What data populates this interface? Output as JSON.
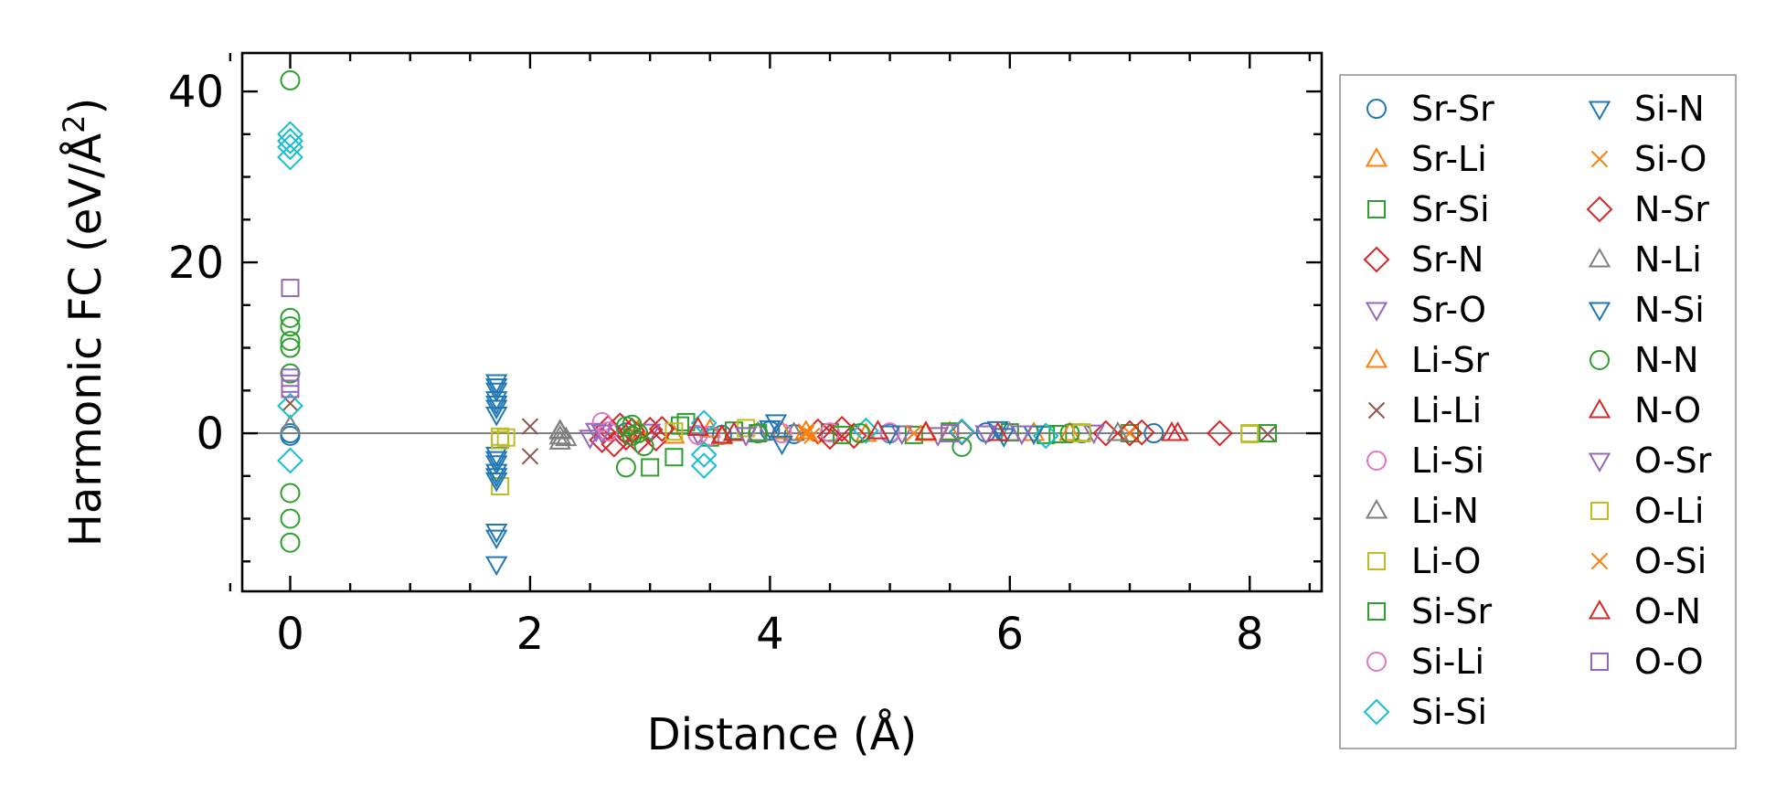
{
  "chart_data": {
    "type": "scatter",
    "xlabel": "Distance (Å)",
    "ylabel_main": "Harmonic FC (eV/Å",
    "ylabel_sup": "2",
    "ylabel_close": ")",
    "xlim": [
      -0.4,
      8.6
    ],
    "ylim": [
      -18.5,
      44.5
    ],
    "xticks": [
      0,
      2,
      4,
      6,
      8
    ],
    "yticks": [
      0,
      20,
      40
    ],
    "legend_position": "outside-right",
    "series": [
      {
        "name": "Sr-Sr",
        "marker": "circle",
        "color": "#1f77b4",
        "points": [
          [
            0,
            0
          ],
          [
            0,
            -0.3
          ],
          [
            2.8,
            0.1
          ],
          [
            3.6,
            -0.2
          ],
          [
            4.0,
            0.3
          ],
          [
            4.2,
            -0.1
          ],
          [
            5.0,
            0.0
          ],
          [
            5.8,
            0.1
          ],
          [
            6.6,
            0.0
          ],
          [
            7.2,
            0.0
          ]
        ]
      },
      {
        "name": "Sr-Li",
        "marker": "triangle-up",
        "color": "#ff7f0e",
        "points": [
          [
            2.9,
            0.2
          ],
          [
            3.2,
            -0.3
          ],
          [
            3.5,
            0.4
          ],
          [
            3.9,
            0.0
          ],
          [
            4.3,
            0.2
          ],
          [
            4.8,
            -0.1
          ],
          [
            5.5,
            0.1
          ],
          [
            6.2,
            0.0
          ]
        ]
      },
      {
        "name": "Sr-Si",
        "marker": "square",
        "color": "#2ca02c",
        "points": [
          [
            3.0,
            -4.0
          ],
          [
            3.2,
            -2.8
          ],
          [
            3.3,
            1.3
          ],
          [
            3.5,
            -0.5
          ],
          [
            3.7,
            0.3
          ],
          [
            4.5,
            0.1
          ],
          [
            5.2,
            -0.2
          ],
          [
            6.0,
            0.1
          ],
          [
            6.4,
            -0.1
          ],
          [
            7.0,
            0.0
          ]
        ]
      },
      {
        "name": "Sr-N",
        "marker": "diamond",
        "color": "#d62728",
        "points": [
          [
            2.6,
            -0.8
          ],
          [
            2.65,
            0.6
          ],
          [
            2.7,
            -1.3
          ],
          [
            2.75,
            0.9
          ],
          [
            2.8,
            -0.5
          ],
          [
            3.0,
            0.4
          ],
          [
            3.05,
            -0.6
          ],
          [
            4.4,
            0.2
          ],
          [
            4.6,
            0.5
          ],
          [
            4.7,
            -0.3
          ],
          [
            5.6,
            0.1
          ],
          [
            6.8,
            0.0
          ],
          [
            7.1,
            0.1
          ]
        ]
      },
      {
        "name": "Sr-O",
        "marker": "triangle-down",
        "color": "#9467bd",
        "points": [
          [
            2.5,
            -0.5
          ],
          [
            2.55,
            0.3
          ],
          [
            3.0,
            0.2
          ],
          [
            3.4,
            -0.1
          ],
          [
            5.1,
            0.0
          ],
          [
            5.4,
            -0.2
          ],
          [
            6.1,
            0.0
          ],
          [
            6.7,
            0.1
          ]
        ]
      },
      {
        "name": "Li-Sr",
        "marker": "triangle-up",
        "color": "#ff7f0e",
        "points": [
          [
            2.9,
            0.3
          ],
          [
            3.6,
            -0.4
          ],
          [
            4.1,
            0.2
          ],
          [
            5.3,
            0.0
          ],
          [
            6.5,
            0.0
          ]
        ]
      },
      {
        "name": "Li-Li",
        "marker": "x",
        "color": "#8c564b",
        "points": [
          [
            0,
            3.5
          ],
          [
            2.0,
            0.8
          ],
          [
            2.0,
            -2.7
          ],
          [
            4.3,
            0.1
          ],
          [
            5.2,
            0.0
          ],
          [
            8.15,
            -0.1
          ]
        ]
      },
      {
        "name": "Li-Si",
        "marker": "circle",
        "color": "#e377c2",
        "points": [
          [
            2.6,
            1.3
          ],
          [
            2.65,
            0.2
          ],
          [
            3.4,
            -0.2
          ],
          [
            4.5,
            0.1
          ]
        ]
      },
      {
        "name": "Li-N",
        "marker": "triangle-up",
        "color": "#7f7f7f",
        "points": [
          [
            0,
            0.8
          ],
          [
            2.25,
            0.3
          ],
          [
            2.25,
            -0.4
          ],
          [
            2.25,
            -1.0
          ],
          [
            2.3,
            -0.6
          ],
          [
            4.2,
            0.0
          ],
          [
            6.0,
            0.0
          ]
        ]
      },
      {
        "name": "Li-O",
        "marker": "square",
        "color": "#bcbd22",
        "points": [
          [
            1.75,
            -0.4
          ],
          [
            1.75,
            -6.2
          ],
          [
            1.8,
            -0.5
          ],
          [
            3.8,
            0.6
          ],
          [
            6.6,
            0.1
          ],
          [
            8.0,
            0.0
          ]
        ]
      },
      {
        "name": "Si-Sr",
        "marker": "square",
        "color": "#2ca02c",
        "points": [
          [
            3.25,
            0.9
          ],
          [
            3.9,
            0.0
          ],
          [
            4.6,
            -0.2
          ],
          [
            5.5,
            0.2
          ],
          [
            6.3,
            -0.2
          ],
          [
            8.15,
            0.0
          ]
        ]
      },
      {
        "name": "Si-Li",
        "marker": "circle",
        "color": "#e377c2",
        "points": [
          [
            3.5,
            -0.3
          ],
          [
            4.1,
            0.0
          ],
          [
            5.0,
            0.1
          ]
        ]
      },
      {
        "name": "Si-Si",
        "marker": "diamond",
        "color": "#17becf",
        "points": [
          [
            0,
            35.0
          ],
          [
            0,
            34.2
          ],
          [
            0,
            33.5
          ],
          [
            0,
            32.3
          ],
          [
            0,
            3.2
          ],
          [
            0,
            -3.2
          ],
          [
            3.45,
            -2.5
          ],
          [
            3.45,
            -3.8
          ],
          [
            3.45,
            1.2
          ],
          [
            4.8,
            0.3
          ],
          [
            5.6,
            0.2
          ],
          [
            6.3,
            -0.3
          ]
        ]
      },
      {
        "name": "Si-N",
        "marker": "triangle-down",
        "color": "#1f77b4",
        "points": [
          [
            1.72,
            6.0
          ],
          [
            1.72,
            5.0
          ],
          [
            1.72,
            4.0
          ],
          [
            1.72,
            3.0
          ],
          [
            1.72,
            2.2
          ],
          [
            1.72,
            -2.5
          ],
          [
            1.72,
            -3.5
          ],
          [
            1.72,
            -4.5
          ],
          [
            1.72,
            -5.5
          ],
          [
            1.72,
            -11.5
          ],
          [
            1.72,
            -12.2
          ],
          [
            1.72,
            -15.3
          ],
          [
            4.05,
            1.3
          ],
          [
            4.1,
            -1.2
          ],
          [
            5.9,
            0.5
          ],
          [
            5.95,
            -0.3
          ]
        ]
      },
      {
        "name": "Si-O",
        "marker": "x",
        "color": "#ff7f0e",
        "points": [
          [
            4.3,
            0.2
          ],
          [
            4.35,
            -0.3
          ],
          [
            7.0,
            0.0
          ]
        ]
      },
      {
        "name": "N-Sr",
        "marker": "diamond",
        "color": "#d62728",
        "points": [
          [
            2.85,
            0.3
          ],
          [
            2.9,
            -0.9
          ],
          [
            3.1,
            0.5
          ],
          [
            4.5,
            -0.4
          ],
          [
            7.0,
            0.0
          ],
          [
            7.75,
            0.0
          ]
        ]
      },
      {
        "name": "N-Li",
        "marker": "triangle-up",
        "color": "#7f7f7f",
        "points": [
          [
            2.25,
            0.2
          ],
          [
            3.9,
            0.0
          ],
          [
            6.9,
            0.0
          ]
        ]
      },
      {
        "name": "N-Si",
        "marker": "triangle-down",
        "color": "#1f77b4",
        "points": [
          [
            1.72,
            5.5
          ],
          [
            1.72,
            3.5
          ],
          [
            1.72,
            -3.0
          ],
          [
            1.72,
            -5.0
          ],
          [
            4.0,
            0.6
          ],
          [
            5.0,
            0.0
          ],
          [
            6.2,
            0.0
          ]
        ]
      },
      {
        "name": "N-N",
        "marker": "circle",
        "color": "#2ca02c",
        "points": [
          [
            0,
            41.3
          ],
          [
            0,
            13.5
          ],
          [
            0,
            12.5
          ],
          [
            0,
            10.8
          ],
          [
            0,
            10.0
          ],
          [
            0,
            7.0
          ],
          [
            0,
            -7.0
          ],
          [
            0,
            -10.0
          ],
          [
            0,
            -12.8
          ],
          [
            2.8,
            -4.0
          ],
          [
            2.85,
            1.0
          ],
          [
            2.9,
            0.0
          ],
          [
            2.95,
            -1.5
          ],
          [
            2.8,
            0.8
          ],
          [
            2.85,
            -0.3
          ],
          [
            3.9,
            0.0
          ],
          [
            4.75,
            0.0
          ],
          [
            5.6,
            -1.6
          ],
          [
            6.5,
            0.0
          ]
        ]
      },
      {
        "name": "N-O",
        "marker": "triangle-up",
        "color": "#d62728",
        "points": [
          [
            3.4,
            0.6
          ],
          [
            3.7,
            0.0
          ],
          [
            4.9,
            0.2
          ],
          [
            5.9,
            0.0
          ],
          [
            7.4,
            0.0
          ]
        ]
      },
      {
        "name": "O-Sr",
        "marker": "triangle-down",
        "color": "#9467bd",
        "points": [
          [
            2.6,
            0.1
          ],
          [
            3.8,
            -0.2
          ],
          [
            5.8,
            0.0
          ],
          [
            6.1,
            0.0
          ]
        ]
      },
      {
        "name": "O-Li",
        "marker": "square",
        "color": "#bcbd22",
        "points": [
          [
            1.75,
            -0.8
          ],
          [
            3.2,
            0.2
          ],
          [
            6.6,
            0.0
          ],
          [
            8.0,
            -0.1
          ]
        ]
      },
      {
        "name": "O-Si",
        "marker": "x",
        "color": "#ff7f0e",
        "points": [
          [
            4.3,
            -0.1
          ],
          [
            5.2,
            0.0
          ]
        ]
      },
      {
        "name": "O-N",
        "marker": "triangle-up",
        "color": "#d62728",
        "points": [
          [
            3.6,
            -0.3
          ],
          [
            5.3,
            0.1
          ],
          [
            7.35,
            0.0
          ]
        ]
      },
      {
        "name": "O-O",
        "marker": "square",
        "color": "#9467bd",
        "points": [
          [
            0,
            17.0
          ],
          [
            0,
            6.5
          ],
          [
            0,
            5.8
          ],
          [
            0,
            5.2
          ],
          [
            5.5,
            0.0
          ]
        ]
      }
    ]
  }
}
